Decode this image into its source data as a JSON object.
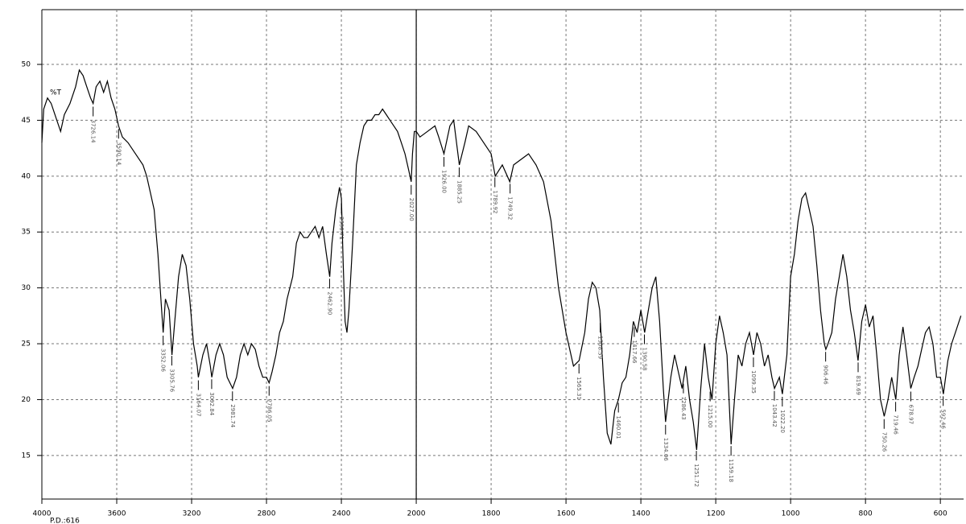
{
  "chart_data": {
    "type": "line",
    "y_label": "%T",
    "footer": "P.D.:616",
    "xlim": [
      4000,
      538
    ],
    "x_scale_change": 2000,
    "x_scale_ratio": 2,
    "xticks": [
      4000,
      3600,
      3200,
      2800,
      2400,
      2000,
      1800,
      1600,
      1400,
      1200,
      1000,
      800,
      600
    ],
    "ylim": [
      11.1,
      54.9
    ],
    "yticks": [
      15,
      20,
      25,
      30,
      35,
      40,
      45,
      50
    ],
    "grid": true,
    "color": "#000000",
    "x": [
      4000,
      3990,
      3970,
      3950,
      3920,
      3900,
      3880,
      3850,
      3820,
      3800,
      3780,
      3760,
      3740,
      3726,
      3710,
      3690,
      3670,
      3650,
      3630,
      3610,
      3590,
      3570,
      3540,
      3500,
      3460,
      3440,
      3420,
      3400,
      3380,
      3360,
      3352,
      3340,
      3320,
      3305,
      3290,
      3270,
      3250,
      3230,
      3210,
      3190,
      3170,
      3164,
      3140,
      3120,
      3100,
      3092,
      3070,
      3050,
      3030,
      3010,
      2981,
      2960,
      2940,
      2920,
      2900,
      2880,
      2860,
      2840,
      2820,
      2800,
      2786,
      2770,
      2750,
      2730,
      2710,
      2690,
      2660,
      2640,
      2620,
      2600,
      2580,
      2560,
      2540,
      2520,
      2500,
      2480,
      2462,
      2450,
      2430,
      2410,
      2400,
      2390,
      2380,
      2370,
      2360,
      2340,
      2320,
      2300,
      2280,
      2260,
      2240,
      2220,
      2200,
      2180,
      2160,
      2140,
      2120,
      2100,
      2080,
      2060,
      2040,
      2027,
      2020,
      2010,
      2000,
      1990,
      1970,
      1950,
      1940,
      1926,
      1910,
      1900,
      1885,
      1870,
      1860,
      1840,
      1820,
      1800,
      1789,
      1770,
      1750,
      1740,
      1720,
      1700,
      1680,
      1660,
      1640,
      1620,
      1600,
      1580,
      1565,
      1550,
      1540,
      1530,
      1520,
      1510,
      1500,
      1490,
      1480,
      1470,
      1460,
      1450,
      1440,
      1430,
      1420,
      1410,
      1400,
      1390,
      1380,
      1370,
      1360,
      1350,
      1340,
      1334,
      1320,
      1310,
      1300,
      1290,
      1280,
      1270,
      1260,
      1251,
      1240,
      1230,
      1220,
      1210,
      1200,
      1190,
      1180,
      1170,
      1159,
      1150,
      1140,
      1130,
      1120,
      1110,
      1099,
      1090,
      1080,
      1070,
      1060,
      1050,
      1043,
      1030,
      1022,
      1010,
      1000,
      990,
      980,
      970,
      960,
      950,
      940,
      930,
      920,
      910,
      906,
      900,
      890,
      880,
      870,
      860,
      850,
      840,
      830,
      820,
      810,
      800,
      790,
      780,
      770,
      760,
      750,
      740,
      730,
      719,
      710,
      700,
      690,
      679,
      670,
      660,
      650,
      640,
      630,
      620,
      610,
      600,
      592,
      580,
      570,
      560,
      545
    ],
    "values": [
      43,
      46,
      47,
      46.5,
      45,
      44,
      45.5,
      46.5,
      48,
      49.5,
      49,
      48,
      47,
      46.5,
      48,
      48.5,
      47.5,
      48.5,
      47,
      46,
      44.5,
      43.5,
      43,
      42,
      41,
      40,
      38.5,
      37,
      33,
      28,
      26,
      29,
      28,
      24,
      27,
      31,
      33,
      32,
      29,
      25,
      23,
      22,
      24,
      25,
      23,
      22,
      24,
      25,
      24,
      22,
      21,
      22,
      24,
      25,
      24,
      25,
      24.5,
      23,
      22,
      22,
      21.5,
      22.5,
      24,
      26,
      27,
      29,
      31,
      34,
      35,
      34.5,
      34.5,
      35,
      35.5,
      34.5,
      35.5,
      33,
      31,
      34,
      37,
      39,
      38,
      32,
      27,
      26,
      28,
      34,
      41,
      43,
      44.5,
      45,
      45,
      45.5,
      45.5,
      46,
      45.5,
      45,
      44.5,
      44,
      43,
      42,
      40.5,
      39.5,
      42,
      44,
      44,
      43.5,
      44,
      44.5,
      43.5,
      42,
      44.5,
      45,
      41,
      43,
      44.5,
      44,
      43,
      42,
      40,
      41,
      39.5,
      41,
      41.5,
      42,
      41,
      39.5,
      36,
      30,
      26,
      23,
      23.5,
      26,
      29,
      30.5,
      30,
      28,
      22,
      17,
      16,
      19,
      20,
      21.5,
      22,
      24,
      27,
      26,
      28,
      26,
      28,
      30,
      31,
      27,
      21,
      18,
      22,
      24,
      22.5,
      21,
      23,
      20,
      18,
      15.5,
      21,
      25,
      22,
      20,
      25,
      27.5,
      26,
      24,
      16,
      20,
      24,
      23,
      25,
      26,
      24,
      26,
      25,
      23,
      24,
      22,
      21,
      22,
      20.5,
      24,
      31,
      33,
      36,
      38,
      38.5,
      37,
      35.5,
      32,
      28,
      25,
      24.5,
      25,
      26,
      29,
      31,
      33,
      31,
      28,
      26,
      23.5,
      27,
      28.5,
      26.5,
      27.5,
      24,
      20,
      18.5,
      20,
      22,
      20,
      24,
      26.5,
      24,
      21,
      22,
      23,
      24.5,
      26,
      26.5,
      25,
      22,
      22,
      20.5,
      23.5,
      25,
      26,
      27.5
    ],
    "peaks": {
      "x": [
        3726.14,
        3590.14,
        3352.06,
        3305.76,
        3164.07,
        3092.84,
        2981.74,
        2786.05,
        2462.9,
        2399.71,
        2027.0,
        1926.0,
        1885.25,
        1789.92,
        1749.32,
        1565.31,
        1508.59,
        1460.01,
        1417.66,
        1390.58,
        1334.06,
        1286.43,
        1251.72,
        1215.0,
        1159.18,
        1099.35,
        1043.42,
        1022.2,
        906.46,
        819.69,
        750.26,
        719.46,
        678.97,
        592.46
      ],
      "labels": [
        "3726.14",
        "3590.14",
        "3352.06",
        "3305.76",
        "3164.07",
        "3092.84",
        "2981.74",
        "2786.05",
        "2462.90",
        "2399.71",
        "2027.00",
        "1926.00",
        "1885.25",
        "1789.92",
        "1749.32",
        "1565.31",
        "1508.59",
        "1460.01",
        "1417.66",
        "1390.58",
        "1334.06",
        "1286.43",
        "1251.72",
        "1215.00",
        "1159.18",
        "1099.35",
        "1043.42",
        "1022.20",
        "906.46",
        "819.69",
        "750.26",
        "719.46",
        "678.97",
        "592.46"
      ]
    }
  }
}
